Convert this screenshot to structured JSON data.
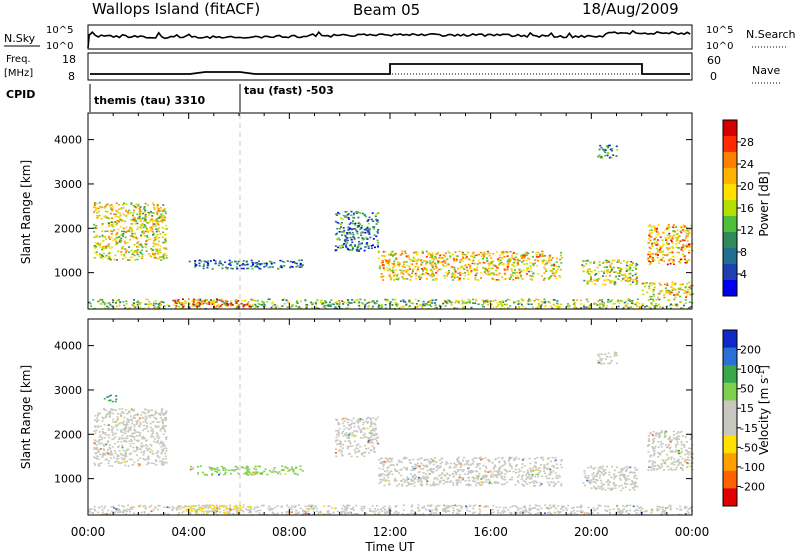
{
  "header": {
    "station": "Wallops Island (fitACF)",
    "beam": "Beam 05",
    "date": "18/Aug/2009"
  },
  "noise_panel": {
    "left_label": "N.Sky",
    "right_label": "N.Search",
    "left_ticks": [
      "10^5",
      "10^0"
    ],
    "right_ticks": [
      "10^5",
      "10^0"
    ]
  },
  "freq_panel": {
    "left_label_line1": "Freq.",
    "left_label_line2": "[MHz]",
    "right_label": "Nave",
    "left_ticks": [
      "18",
      "8"
    ],
    "right_ticks": [
      "60",
      "0"
    ]
  },
  "cpid_panel": {
    "label": "CPID",
    "segments": [
      {
        "text": "themis (tau) 3310",
        "start_hour": 0
      },
      {
        "text": "tau (fast) -503",
        "start_hour": 6
      }
    ]
  },
  "x_axis": {
    "label": "Time UT",
    "ticks": [
      "00:00",
      "04:00",
      "08:00",
      "12:00",
      "16:00",
      "20:00",
      "00:00"
    ],
    "range_hours": [
      0,
      24
    ]
  },
  "power_colorbar": {
    "label": "Power [dB]",
    "ticks": [
      "28",
      "24",
      "20",
      "16",
      "12",
      "8",
      "4"
    ],
    "colors": [
      "#d40000",
      "#ff2a00",
      "#ff7f00",
      "#ffb300",
      "#ffe000",
      "#b4e000",
      "#4fbf3a",
      "#2e8b57",
      "#1f6e8f",
      "#1d3fb0",
      "#0000ee"
    ]
  },
  "velocity_colorbar": {
    "label": "Velocity [m s^-1]",
    "ticks": [
      "200",
      "100",
      "50",
      "15",
      "-15",
      "-50",
      "-100",
      "-200"
    ],
    "colors": [
      "#1028c8",
      "#2a6fd8",
      "#3aa84a",
      "#7fd04a",
      "#c8c8c0",
      "#c8c8c0",
      "#ffe000",
      "#ffa000",
      "#ff6000",
      "#e00000"
    ]
  },
  "chart_data": [
    {
      "type": "heatmap",
      "quantity": "power",
      "ylabel": "Slant Range [km]",
      "xlabel": "",
      "yticks": [
        1000,
        2000,
        3000,
        4000
      ],
      "ylim": [
        180,
        4600
      ],
      "xlim": [
        0,
        24
      ],
      "color_range_db": [
        0,
        32
      ],
      "echo_regions": [
        {
          "t0": 0.2,
          "t1": 3.1,
          "r0": 1300,
          "r1": 2600,
          "value": 18
        },
        {
          "t0": 0.0,
          "t1": 24.0,
          "r0": 200,
          "r1": 420,
          "value": 14
        },
        {
          "t0": 3.4,
          "t1": 6.5,
          "r0": 250,
          "r1": 420,
          "value": 26
        },
        {
          "t0": 4.0,
          "t1": 8.5,
          "r0": 1100,
          "r1": 1300,
          "value": 6
        },
        {
          "t0": 9.8,
          "t1": 11.5,
          "r0": 1500,
          "r1": 2400,
          "value": 8
        },
        {
          "t0": 11.5,
          "t1": 18.8,
          "r0": 850,
          "r1": 1500,
          "value": 20
        },
        {
          "t0": 19.6,
          "t1": 21.8,
          "r0": 750,
          "r1": 1300,
          "value": 16
        },
        {
          "t0": 22.2,
          "t1": 24.0,
          "r0": 1200,
          "r1": 2100,
          "value": 22
        },
        {
          "t0": 22.0,
          "t1": 24.0,
          "r0": 450,
          "r1": 800,
          "value": 20
        },
        {
          "t0": 20.2,
          "t1": 21.0,
          "r0": 3600,
          "r1": 3900,
          "value": 8
        }
      ]
    },
    {
      "type": "heatmap",
      "quantity": "velocity",
      "ylabel": "Slant Range [km]",
      "xlabel": "Time UT",
      "yticks": [
        1000,
        2000,
        3000,
        4000
      ],
      "ylim": [
        180,
        4600
      ],
      "xlim": [
        0,
        24
      ],
      "echo_regions": [
        {
          "t0": 0.2,
          "t1": 3.1,
          "r0": 1300,
          "r1": 2600,
          "value": 0
        },
        {
          "t0": 0.0,
          "t1": 24.0,
          "r0": 200,
          "r1": 420,
          "value": 20
        },
        {
          "t0": 3.4,
          "t1": 6.5,
          "r0": 250,
          "r1": 420,
          "value": -60
        },
        {
          "t0": 4.0,
          "t1": 8.5,
          "r0": 1100,
          "r1": 1300,
          "value": 60
        },
        {
          "t0": 9.8,
          "t1": 11.5,
          "r0": 1500,
          "r1": 2400,
          "value": 0
        },
        {
          "t0": 11.5,
          "t1": 18.8,
          "r0": 850,
          "r1": 1500,
          "value": 0
        },
        {
          "t0": 19.6,
          "t1": 21.8,
          "r0": 750,
          "r1": 1300,
          "value": 0
        },
        {
          "t0": 22.2,
          "t1": 24.0,
          "r0": 1200,
          "r1": 2100,
          "value": 0
        },
        {
          "t0": 0.6,
          "t1": 1.1,
          "r0": 2750,
          "r1": 2900,
          "value": 150
        },
        {
          "t0": 20.2,
          "t1": 21.0,
          "r0": 3600,
          "r1": 3900,
          "value": 0
        }
      ]
    }
  ]
}
